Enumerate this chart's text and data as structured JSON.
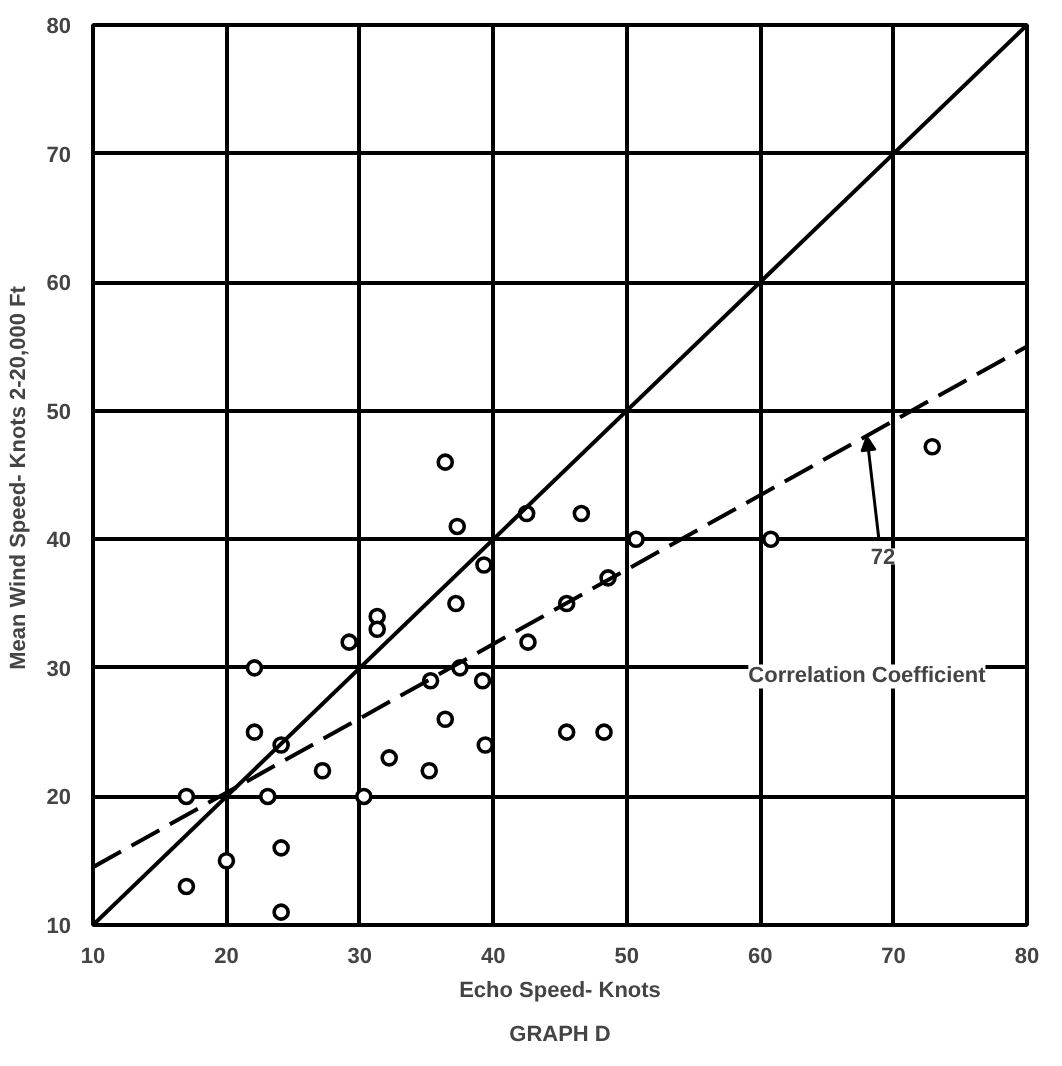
{
  "chart_data": {
    "type": "scatter",
    "title": "GRAPH D",
    "xlabel": "Echo Speed- Knots",
    "ylabel": "Mean Wind Speed- Knots  2-20,000 Ft",
    "xlim": [
      10,
      80
    ],
    "ylim": [
      10,
      80
    ],
    "xticks": [
      10,
      20,
      30,
      40,
      50,
      60,
      70,
      80
    ],
    "yticks": [
      10,
      20,
      30,
      40,
      50,
      60,
      70,
      80
    ],
    "grid": true,
    "series": [
      {
        "marker": "circle",
        "color": "#000000",
        "x": [
          36.4,
          37.3,
          42.5,
          39.3,
          37.2,
          31.3,
          31.3,
          29.2,
          22.1,
          37.5,
          35.3,
          39.2,
          42.6,
          36.4,
          22.1,
          24.1,
          39.4,
          32.2,
          27.2,
          35.2,
          17,
          23.1,
          30.3,
          17,
          20,
          24.1,
          24.1,
          46.6,
          50.7,
          60.8,
          48.6,
          45.5,
          45.5,
          48.3,
          72.9
        ],
        "values": [
          46,
          41,
          42,
          38,
          35,
          34,
          33,
          32,
          30,
          30,
          29,
          29,
          32,
          26,
          25,
          24,
          24,
          23,
          22,
          22,
          20,
          20,
          20,
          13,
          15,
          16,
          11,
          42,
          40,
          40,
          37,
          35,
          25,
          25,
          47.2
        ]
      },
      {
        "type": "line",
        "color": "#000000",
        "line_style": "solid",
        "x": [
          10,
          80
        ],
        "values": [
          10,
          80
        ]
      },
      {
        "type": "line",
        "color": "#000000",
        "line_style": "dashed",
        "x": [
          10,
          80
        ],
        "values": [
          14.5,
          55
        ]
      }
    ],
    "annotations": [
      {
        "text": "72",
        "x": 68,
        "y": 48
      },
      "Correlation Coefficient"
    ]
  }
}
